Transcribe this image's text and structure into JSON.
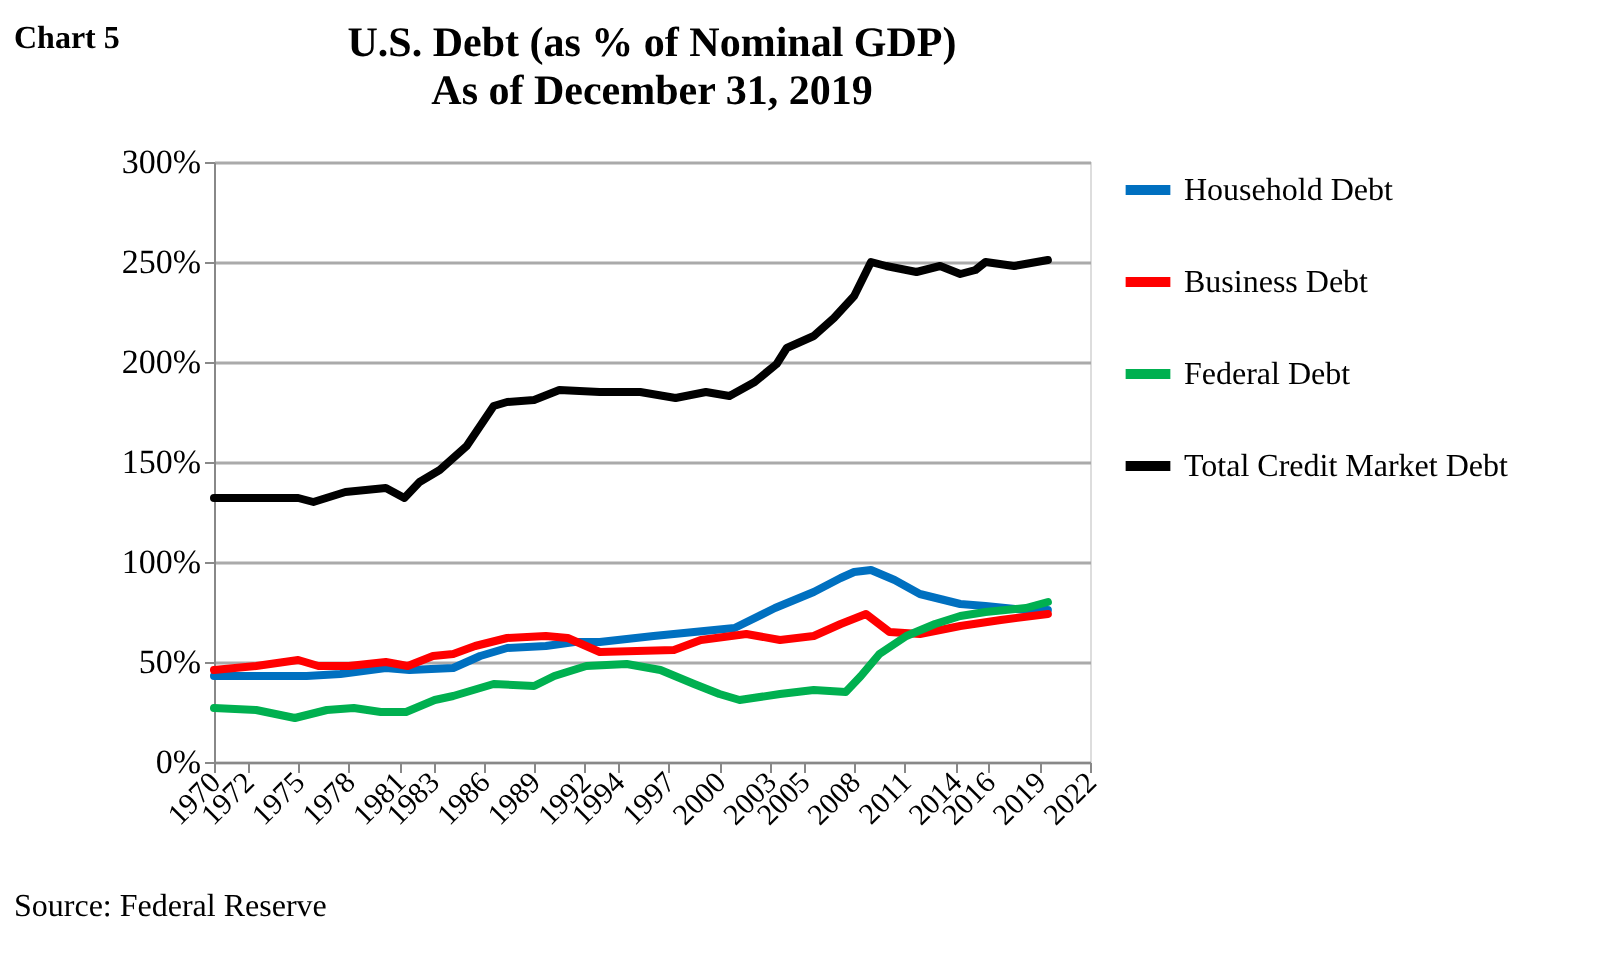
{
  "chart_data": {
    "type": "line",
    "title": "U.S. Debt (as % of Nominal GDP)",
    "subtitle": "As of December 31, 2019",
    "annotations": [
      "Chart 5",
      "Source: Federal Reserve"
    ],
    "xlim": [
      1970,
      2022
    ],
    "xticks": [
      1970,
      1972,
      1975,
      1978,
      1981,
      1983,
      1986,
      1989,
      1992,
      1994,
      1997,
      2000,
      2003,
      2005,
      2008,
      2011,
      2014,
      2016,
      2019,
      2022
    ],
    "ylim": [
      0,
      300
    ],
    "yticks": [
      {
        "value": 0,
        "label": "0%"
      },
      {
        "value": 50,
        "label": "50%"
      },
      {
        "value": 100,
        "label": "100%"
      },
      {
        "value": 150,
        "label": "150%"
      },
      {
        "value": 200,
        "label": "200%"
      },
      {
        "value": 250,
        "label": "250%"
      },
      {
        "value": 300,
        "label": "300%"
      }
    ],
    "grid": "y",
    "legend": "right",
    "line_style": "solid",
    "marker": "none",
    "series": [
      {
        "name": "Household Debt",
        "color": "#0070c0",
        "x": [
          1970,
          1972.5,
          1975.5,
          1977.5,
          1980.2,
          1981.6,
          1984.2,
          1985.8,
          1987.4,
          1989.7,
          1991.4,
          1992.9,
          1996.1,
          1998.5,
          2000.9,
          2003.3,
          2005.6,
          2007.2,
          2008,
          2009,
          2010.4,
          2011.9,
          2014.3,
          2015.8,
          2018.2,
          2019.5
        ],
        "values": [
          43,
          43,
          43,
          44,
          47,
          46,
          47,
          53,
          57,
          58,
          60,
          60,
          63,
          65,
          67,
          77,
          85,
          92,
          95,
          96,
          91,
          84,
          79,
          78,
          76,
          76
        ]
      },
      {
        "name": "Business Debt",
        "color": "#ff0000",
        "x": [
          1970,
          1972.5,
          1975,
          1976.2,
          1978,
          1980.2,
          1981.5,
          1983,
          1984.2,
          1985.5,
          1987.4,
          1989.7,
          1991,
          1992.9,
          1997.3,
          1998.9,
          2001.6,
          2003.6,
          2005.6,
          2007.2,
          2008.7,
          2010.1,
          2011.9,
          2014.3,
          2016.7,
          2019.5
        ],
        "values": [
          46,
          48,
          51,
          48,
          48,
          50,
          48,
          53,
          54,
          58,
          62,
          63,
          62,
          55,
          56,
          61,
          64,
          61,
          63,
          69,
          74,
          65,
          64,
          68,
          71,
          74
        ]
      },
      {
        "name": "Federal Debt",
        "color": "#00b050",
        "x": [
          1970,
          1972.5,
          1974.8,
          1976.7,
          1978.3,
          1979.9,
          1981.4,
          1983.1,
          1984.2,
          1986.6,
          1989,
          1990.2,
          1992.1,
          1994.5,
          1996.5,
          1998.5,
          2000,
          2001.2,
          2003.6,
          2005.6,
          2007.5,
          2008.4,
          2009.5,
          2011.1,
          2012.8,
          2014.3,
          2015.8,
          2018.2,
          2019.5
        ],
        "values": [
          27,
          26,
          22,
          26,
          27,
          25,
          25,
          31,
          33,
          39,
          38,
          43,
          48,
          49,
          46,
          39,
          34,
          31,
          34,
          36,
          35,
          43,
          54,
          63,
          69,
          73,
          75,
          77,
          80
        ]
      },
      {
        "name": "Total Credit Market Debt",
        "color": "#000000",
        "x": [
          1970,
          1972.5,
          1975,
          1975.9,
          1977.8,
          1980.2,
          1981.3,
          1982.2,
          1983.4,
          1985,
          1986.6,
          1987.4,
          1989,
          1990.5,
          1992.9,
          1995.3,
          1997.4,
          1999.2,
          2000.6,
          2002.1,
          2003.4,
          2004,
          2005.6,
          2006.8,
          2008,
          2009,
          2009.9,
          2011.7,
          2013.1,
          2014.3,
          2015.2,
          2015.8,
          2017.5,
          2019.5
        ],
        "values": [
          132,
          132,
          132,
          130,
          135,
          137,
          132,
          140,
          146,
          158,
          178,
          180,
          181,
          186,
          185,
          185,
          182,
          185,
          183,
          190,
          199,
          207,
          213,
          222,
          233,
          250,
          248,
          245,
          248,
          244,
          246,
          250,
          248,
          251
        ]
      }
    ]
  }
}
